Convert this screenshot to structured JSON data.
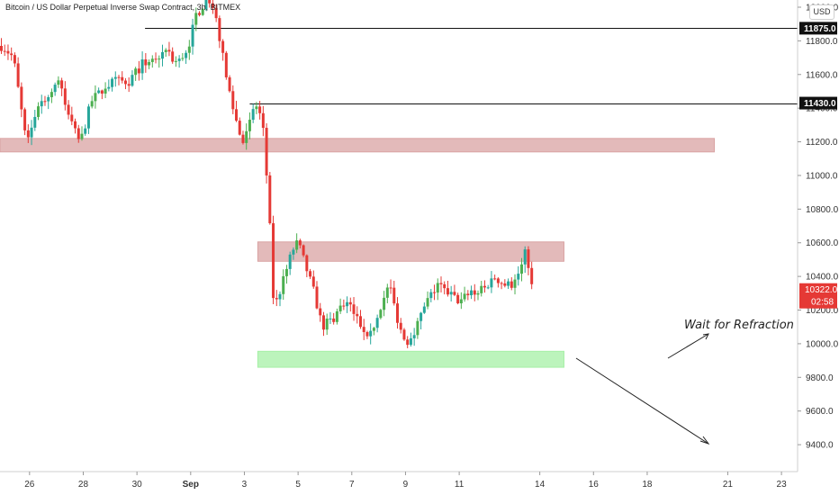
{
  "title": "Bitcoin / US Dollar Perpetual Inverse Swap Contract, 3h, BITMEX",
  "currency_label": "USD",
  "chart_data": {
    "type": "candlestick",
    "ylim": [
      9240,
      12000
    ],
    "y_ticks": [
      {
        "value": 12000,
        "label": "12000.0"
      },
      {
        "value": 11800,
        "label": "11800.0"
      },
      {
        "value": 11600,
        "label": "11600.0"
      },
      {
        "value": 11400,
        "label": "11400.0"
      },
      {
        "value": 11200,
        "label": "11200.0"
      },
      {
        "value": 11000,
        "label": "11000.0"
      },
      {
        "value": 10800,
        "label": "10800.0"
      },
      {
        "value": 10600,
        "label": "10600.0"
      },
      {
        "value": 10400,
        "label": "10400.0"
      },
      {
        "value": 10200,
        "label": "10200.0"
      },
      {
        "value": 10000,
        "label": "10000.0"
      },
      {
        "value": 9800,
        "label": "9800.0"
      },
      {
        "value": 9600,
        "label": "9600.0"
      },
      {
        "value": 9400,
        "label": "9400.0"
      }
    ],
    "x_ticks": [
      {
        "day": 26,
        "label": "26",
        "bold": false
      },
      {
        "day": 28,
        "label": "28",
        "bold": false
      },
      {
        "day": 30,
        "label": "30",
        "bold": false
      },
      {
        "day": 32,
        "label": "Sep",
        "bold": true
      },
      {
        "day": 34,
        "label": "3",
        "bold": false
      },
      {
        "day": 36,
        "label": "5",
        "bold": false
      },
      {
        "day": 38,
        "label": "7",
        "bold": false
      },
      {
        "day": 40,
        "label": "9",
        "bold": false
      },
      {
        "day": 42,
        "label": "11",
        "bold": false
      },
      {
        "day": 45,
        "label": "14",
        "bold": false
      },
      {
        "day": 47,
        "label": "16",
        "bold": false
      },
      {
        "day": 49,
        "label": "18",
        "bold": false
      },
      {
        "day": 52,
        "label": "21",
        "bold": false
      },
      {
        "day": 54,
        "label": "23",
        "bold": false
      }
    ],
    "x_range_days": [
      24.9,
      54.6
    ],
    "up_color": "#26a69a",
    "up_color_bright": "#4caf50",
    "down_color": "#e53935",
    "anchors": [
      [
        25.0,
        11770
      ],
      [
        25.4,
        11700
      ],
      [
        25.9,
        11170
      ],
      [
        26.3,
        11420
      ],
      [
        26.7,
        11470
      ],
      [
        27.1,
        11580
      ],
      [
        27.4,
        11370
      ],
      [
        27.9,
        11200
      ],
      [
        28.3,
        11440
      ],
      [
        28.8,
        11530
      ],
      [
        29.2,
        11560
      ],
      [
        29.7,
        11560
      ],
      [
        30.2,
        11660
      ],
      [
        30.7,
        11700
      ],
      [
        31.1,
        11740
      ],
      [
        31.5,
        11660
      ],
      [
        31.9,
        11760
      ],
      [
        32.2,
        11950
      ],
      [
        32.6,
        12050
      ],
      [
        33.0,
        11900
      ],
      [
        33.3,
        11600
      ],
      [
        33.6,
        11390
      ],
      [
        33.9,
        11200
      ],
      [
        34.3,
        11380
      ],
      [
        34.5,
        11420
      ],
      [
        34.7,
        11260
      ],
      [
        34.9,
        10850
      ],
      [
        35.1,
        10200
      ],
      [
        35.4,
        10350
      ],
      [
        35.8,
        10560
      ],
      [
        36.0,
        10600
      ],
      [
        36.3,
        10450
      ],
      [
        36.6,
        10300
      ],
      [
        36.9,
        10100
      ],
      [
        37.3,
        10150
      ],
      [
        37.7,
        10250
      ],
      [
        38.0,
        10200
      ],
      [
        38.4,
        10100
      ],
      [
        38.7,
        10050
      ],
      [
        39.0,
        10200
      ],
      [
        39.4,
        10350
      ],
      [
        39.7,
        10150
      ],
      [
        40.0,
        10000
      ],
      [
        40.4,
        10100
      ],
      [
        40.8,
        10250
      ],
      [
        41.2,
        10350
      ],
      [
        41.6,
        10300
      ],
      [
        42.0,
        10250
      ],
      [
        42.4,
        10300
      ],
      [
        42.9,
        10320
      ],
      [
        43.3,
        10400
      ],
      [
        43.7,
        10350
      ],
      [
        44.0,
        10350
      ],
      [
        44.3,
        10450
      ],
      [
        44.5,
        10560
      ],
      [
        44.7,
        10330
      ]
    ],
    "current_price": {
      "value": 10322.0,
      "label": "10322.0",
      "countdown": "02:58"
    },
    "horizontal_levels": [
      {
        "value": 11875,
        "label": "11875.0",
        "from_day": 30.3
      },
      {
        "value": 11430,
        "label": "11430.0",
        "from_day": 34.2
      }
    ],
    "zones": [
      {
        "from_day": 24.9,
        "to_day": 51.5,
        "y_low": 11140,
        "y_high": 11220,
        "color": "#d9a3a3"
      },
      {
        "from_day": 34.5,
        "to_day": 45.9,
        "y_low": 10490,
        "y_high": 10605,
        "color": "#d9a3a3"
      },
      {
        "from_day": 34.5,
        "to_day": 45.9,
        "y_low": 9860,
        "y_high": 9955,
        "color": "#a6f0a6"
      }
    ],
    "annotation": {
      "text": "Wait for Refraction"
    }
  }
}
